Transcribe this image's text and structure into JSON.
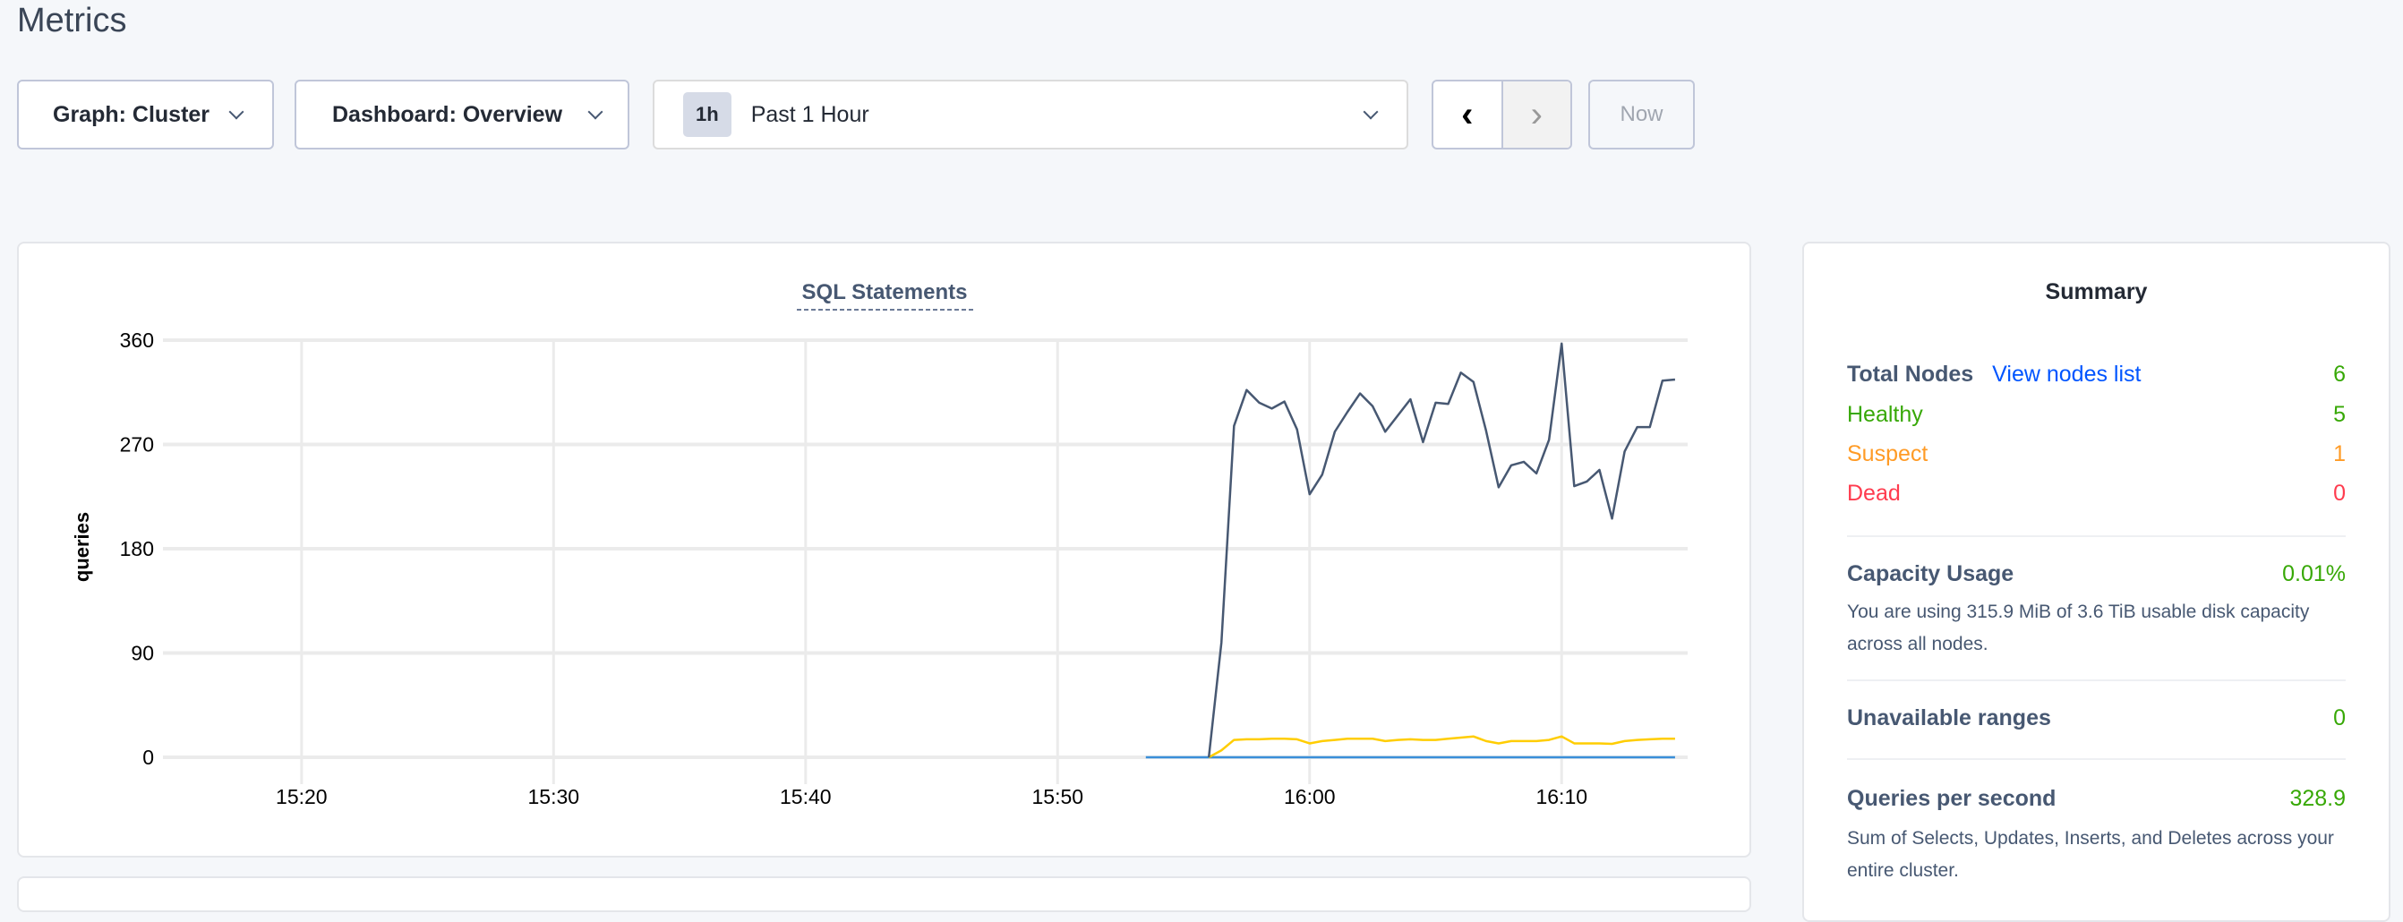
{
  "page": {
    "title": "Metrics"
  },
  "toolbar": {
    "graph_label": "Graph: Cluster",
    "dashboard_label": "Dashboard: Overview",
    "time_badge": "1h",
    "time_label": "Past 1 Hour",
    "prev_icon": "chevron-left-icon",
    "next_icon": "chevron-right-icon",
    "prev_glyph": "‹",
    "next_glyph": "›",
    "now_label": "Now"
  },
  "chart_data": {
    "type": "line",
    "title": "SQL Statements",
    "ylabel": "queries",
    "xlabel": "",
    "ylim": [
      0,
      360
    ],
    "yticks": [
      "0",
      "90",
      "180",
      "270",
      "360"
    ],
    "xlim": [
      "15:14:30",
      "16:15:00"
    ],
    "xticks": [
      "15:20",
      "15:30",
      "15:40",
      "15:50",
      "16:00",
      "16:10"
    ],
    "grid": true,
    "legend": "none",
    "x": [
      "15:56:00",
      "15:56:30",
      "15:57:00",
      "15:57:30",
      "15:58:00",
      "15:58:30",
      "15:59:00",
      "15:59:30",
      "16:00:00",
      "16:00:30",
      "16:01:00",
      "16:01:30",
      "16:02:00",
      "16:02:30",
      "16:03:00",
      "16:03:30",
      "16:04:00",
      "16:04:30",
      "16:05:00",
      "16:05:30",
      "16:06:00",
      "16:06:30",
      "16:07:00",
      "16:07:30",
      "16:08:00",
      "16:08:30",
      "16:09:00",
      "16:09:30",
      "16:10:00",
      "16:10:30",
      "16:11:00",
      "16:11:30",
      "16:12:00",
      "16:12:30",
      "16:13:00",
      "16:13:30",
      "16:14:00",
      "16:14:30"
    ],
    "series": [
      {
        "color": "#475872",
        "values": [
          0,
          99,
          286,
          317,
          306,
          301,
          307,
          283,
          227,
          244,
          281,
          298,
          314,
          303,
          281,
          295,
          309,
          272,
          306,
          305,
          332,
          324,
          282,
          233,
          252,
          255,
          245,
          274,
          357,
          234,
          238,
          248,
          206,
          264,
          285,
          285,
          325,
          326
        ]
      },
      {
        "color": "#ffcd02",
        "values": [
          0,
          6,
          15,
          15.5,
          15.5,
          16,
          16,
          15.5,
          12,
          14,
          15,
          16,
          16,
          16,
          14,
          15,
          15.5,
          15,
          15,
          16,
          17,
          18,
          14,
          12,
          14,
          14,
          14,
          15,
          18,
          12,
          12,
          12,
          11.6,
          14,
          15,
          15.5,
          16,
          16
        ]
      },
      {
        "color": "#3a8fd9",
        "x": [
          "15:53:30",
          "16:14:30"
        ],
        "values": [
          0,
          0
        ]
      }
    ]
  },
  "summary": {
    "title": "Summary",
    "total_nodes_label": "Total Nodes",
    "view_nodes_link": "View nodes list",
    "total_nodes_value": "6",
    "healthy_label": "Healthy",
    "healthy_value": "5",
    "suspect_label": "Suspect",
    "suspect_value": "1",
    "dead_label": "Dead",
    "dead_value": "0",
    "capacity_label": "Capacity Usage",
    "capacity_value": "0.01%",
    "capacity_desc": "You are using 315.9 MiB of 3.6 TiB usable disk capacity across all nodes.",
    "unavailable_label": "Unavailable ranges",
    "unavailable_value": "0",
    "qps_label": "Queries per second",
    "qps_value": "328.9",
    "qps_desc": "Sum of Selects, Updates, Inserts, and Deletes across your entire cluster.",
    "colors": {
      "green": "#37a806",
      "orange": "#ff9b26",
      "red": "#ff3b4e",
      "link": "#0055ff"
    }
  }
}
